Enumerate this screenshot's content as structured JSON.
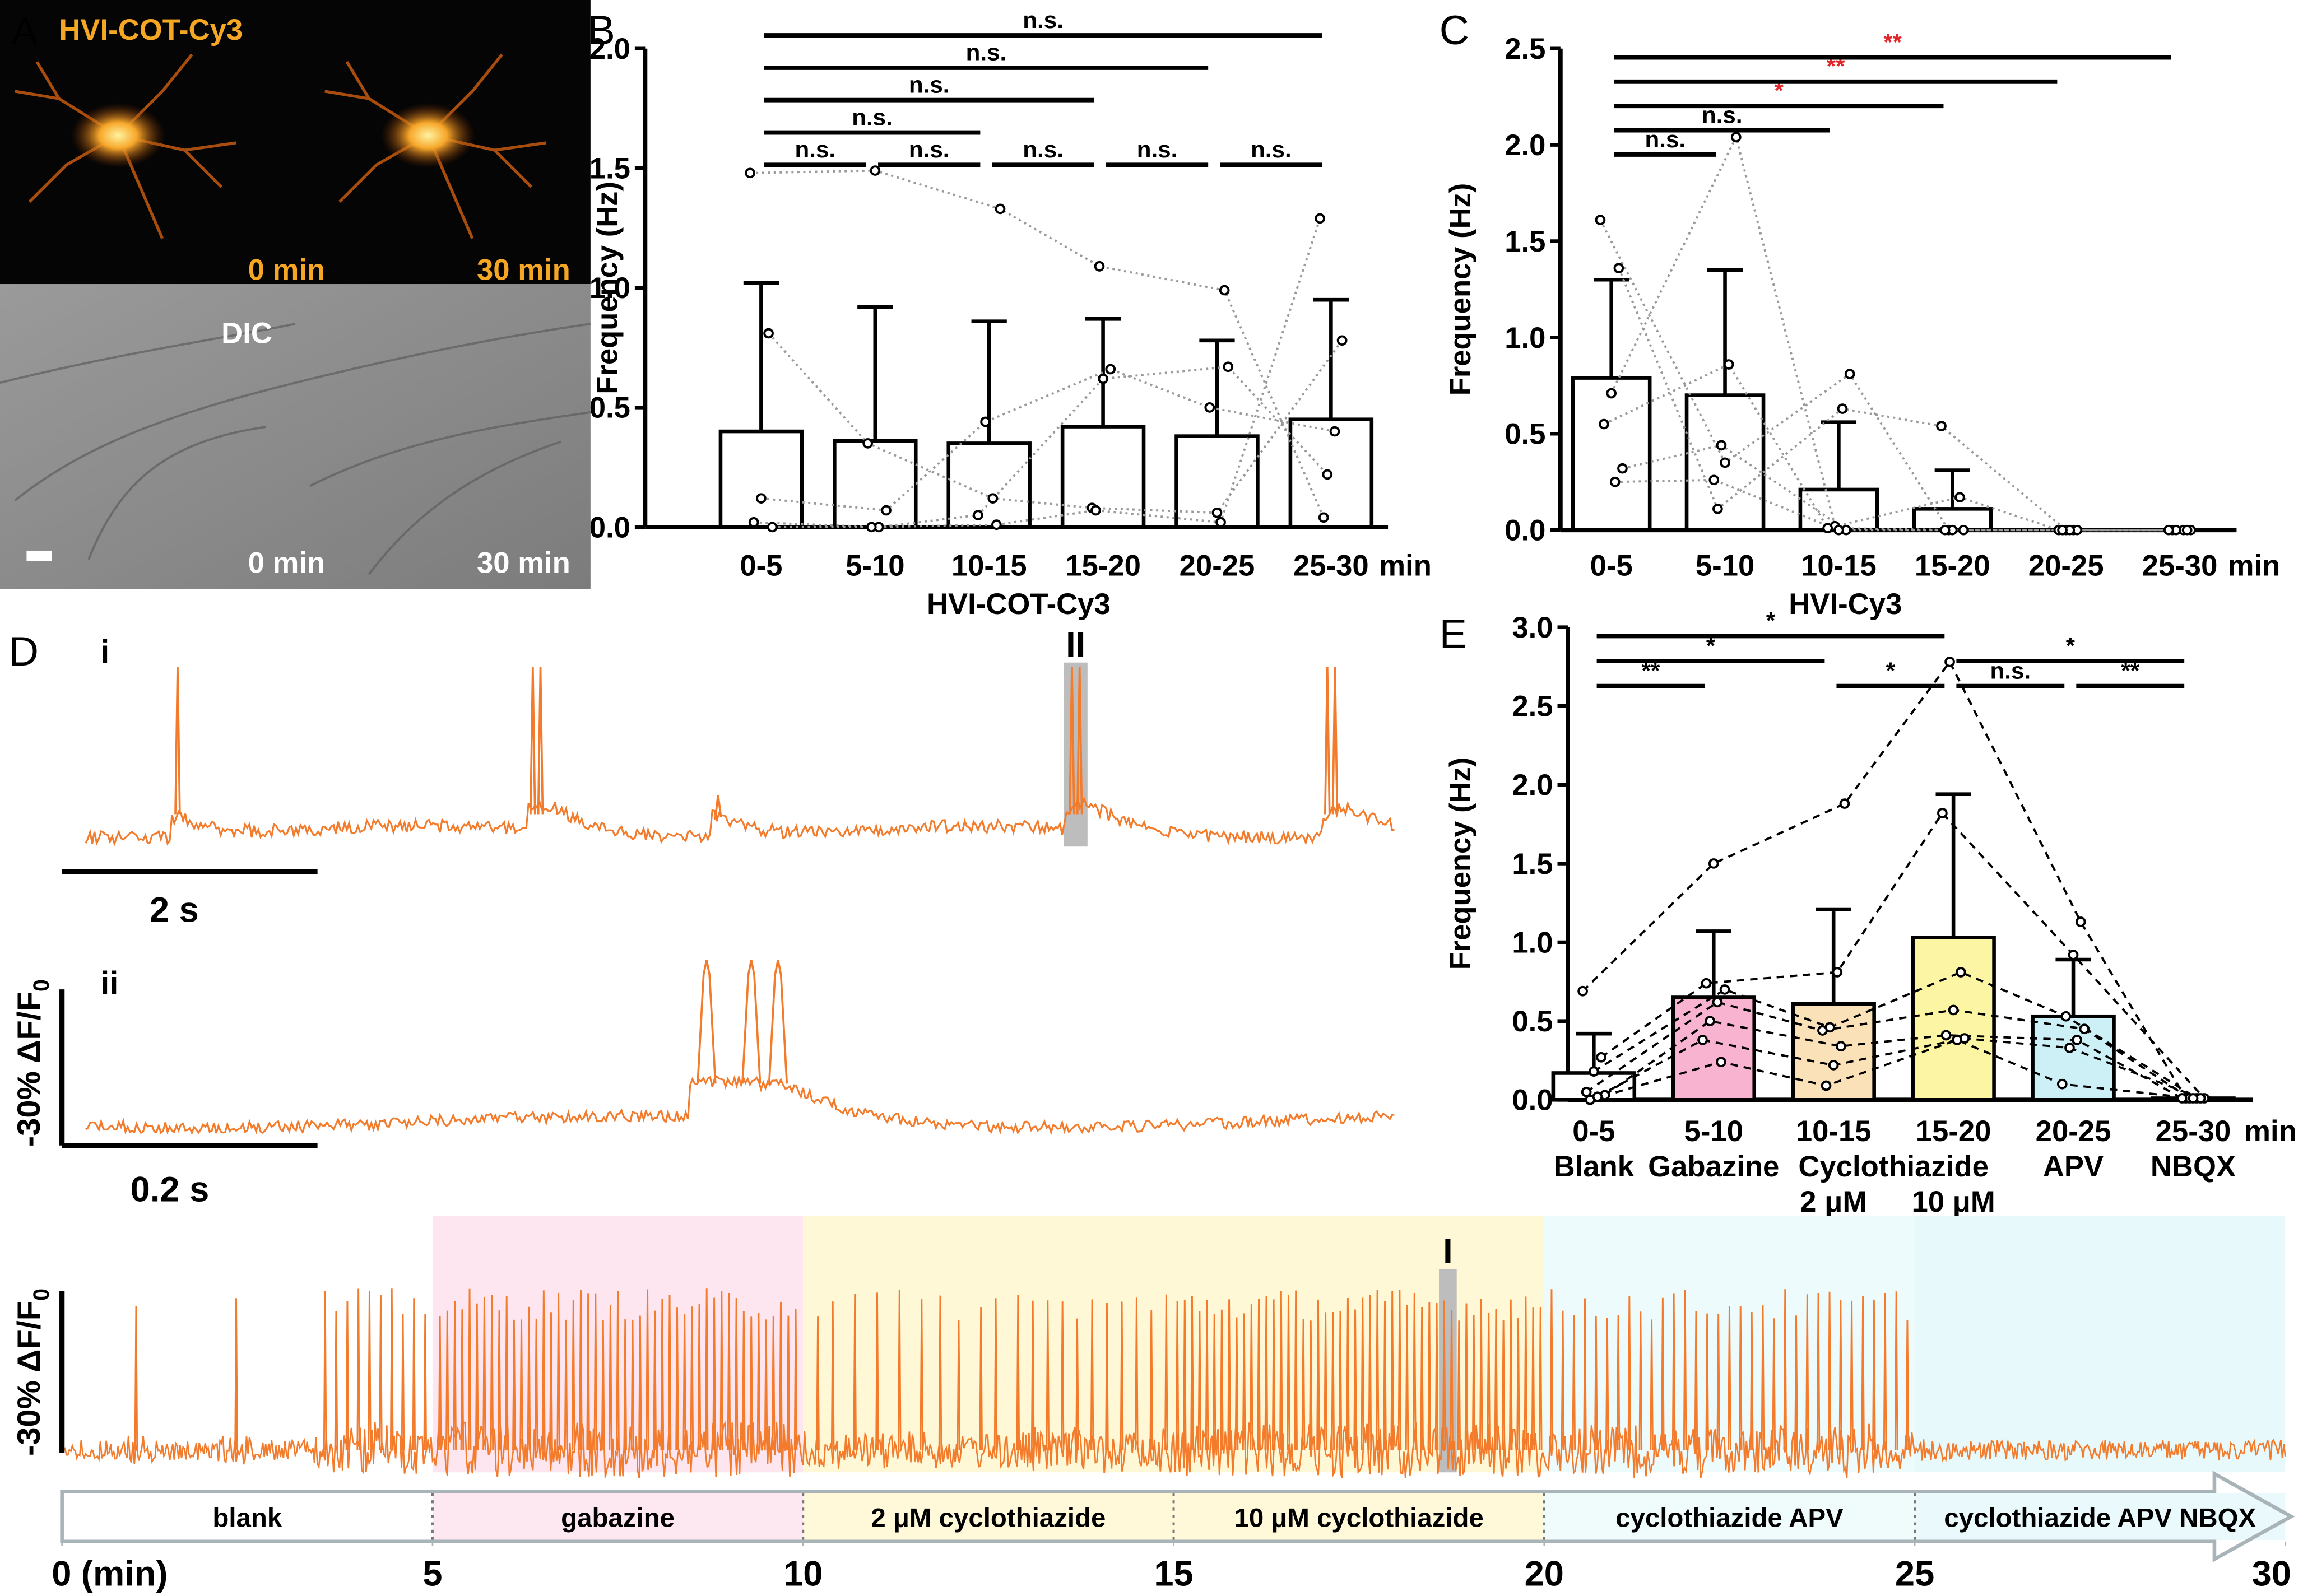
{
  "panel_a": {
    "label": "A",
    "title": "HVI-COT-Cy3",
    "fluorescence_times": [
      "0 min",
      "30 min"
    ],
    "dic_label": "DIC",
    "dic_times": [
      "0 min",
      "30 min"
    ]
  },
  "chart_data": [
    {
      "type": "bar",
      "panel": "B",
      "categories": [
        "0-5",
        "5-10",
        "10-15",
        "15-20",
        "20-25",
        "25-30"
      ],
      "x_unit": "min",
      "x_label": "HVI-COT-Cy3",
      "y_label": "Frequency (Hz)",
      "ylim": [
        0,
        2
      ],
      "yticks": [
        {
          "value": 0,
          "label": "0.0"
        },
        0.5,
        {
          "value": 1,
          "label": "1.0"
        },
        1.5,
        {
          "value": 2,
          "label": "2.0"
        }
      ],
      "values": [
        0.4,
        0.36,
        0.35,
        0.42,
        0.38,
        0.45
      ],
      "errors": [
        0.62,
        0.56,
        0.51,
        0.45,
        0.4,
        0.5
      ],
      "bar_color": "#ffffff",
      "cell_line_style": "dotted",
      "cell_line_color": "#9a9a9a",
      "series": [
        {
          "values": [
            1.48,
            1.49,
            1.33,
            1.09,
            0.99,
            0.04
          ]
        },
        {
          "values": [
            0.81,
            0.35,
            0.12,
            0.08,
            0.06,
            0.78
          ]
        },
        {
          "values": [
            0.12,
            0.07,
            0.44,
            0.66,
            0.5,
            0.4
          ]
        },
        {
          "values": [
            0.02,
            0.0,
            0.05,
            0.62,
            0.67,
            0.22
          ]
        },
        {
          "values": [
            0.0,
            0.0,
            0.01,
            0.07,
            0.02,
            1.29
          ]
        }
      ],
      "comparisons": [
        {
          "from": 0,
          "to": 1,
          "label": "n.s.",
          "color": "#000000"
        },
        {
          "from": 1,
          "to": 2,
          "label": "n.s.",
          "color": "#000000"
        },
        {
          "from": 2,
          "to": 3,
          "label": "n.s.",
          "color": "#000000"
        },
        {
          "from": 3,
          "to": 4,
          "label": "n.s.",
          "color": "#000000"
        },
        {
          "from": 4,
          "to": 5,
          "label": "n.s.",
          "color": "#000000"
        },
        {
          "from": 0,
          "to": 2,
          "label": "n.s.",
          "color": "#000000"
        },
        {
          "from": 0,
          "to": 3,
          "label": "n.s.",
          "color": "#000000"
        },
        {
          "from": 0,
          "to": 4,
          "label": "n.s.",
          "color": "#000000"
        },
        {
          "from": 0,
          "to": 5,
          "label": "n.s.",
          "color": "#000000"
        }
      ]
    },
    {
      "type": "bar",
      "panel": "C",
      "categories": [
        "0-5",
        "5-10",
        "10-15",
        "15-20",
        "20-25",
        "25-30"
      ],
      "x_unit": "min",
      "x_label": "HVI-Cy3",
      "y_label": "Frequency (Hz)",
      "ylim": [
        0,
        2.5
      ],
      "yticks": [
        {
          "value": 0,
          "label": "0.0"
        },
        0.5,
        {
          "value": 1,
          "label": "1.0"
        },
        1.5,
        {
          "value": 2,
          "label": "2.0"
        },
        2.5
      ],
      "values": [
        0.79,
        0.7,
        0.21,
        0.11,
        0.0,
        0.0
      ],
      "errors": [
        0.51,
        0.65,
        0.35,
        0.2,
        0.0,
        0.0
      ],
      "bar_color": "#ffffff",
      "cell_line_style": "dotted",
      "cell_line_color": "#9a9a9a",
      "series": [
        {
          "values": [
            1.61,
            0.35,
            0.81,
            0.0,
            0.0,
            0.0
          ]
        },
        {
          "values": [
            1.36,
            0.11,
            0.63,
            0.54,
            0.0,
            0.0
          ]
        },
        {
          "values": [
            0.71,
            2.04,
            0.02,
            0.17,
            0.0,
            0.0
          ]
        },
        {
          "values": [
            0.55,
            0.86,
            0.01,
            0.0,
            0.0,
            0.0
          ]
        },
        {
          "values": [
            0.32,
            0.44,
            0.0,
            0.0,
            0.0,
            0.0
          ]
        },
        {
          "values": [
            0.25,
            0.26,
            0.0,
            0.0,
            0.0,
            0.0
          ]
        }
      ],
      "comparisons": [
        {
          "from": 0,
          "to": 1,
          "label": "n.s.",
          "color": "#000000"
        },
        {
          "from": 0,
          "to": 2,
          "label": "n.s.",
          "color": "#000000"
        },
        {
          "from": 0,
          "to": 3,
          "label": "*",
          "color": "#e3262b"
        },
        {
          "from": 0,
          "to": 4,
          "label": "**",
          "color": "#e3262b"
        },
        {
          "from": 0,
          "to": 5,
          "label": "**",
          "color": "#e3262b"
        }
      ]
    },
    {
      "type": "bar",
      "panel": "E",
      "categories": [
        "0-5",
        "5-10",
        "10-15",
        "15-20",
        "20-25",
        "25-30"
      ],
      "x_unit": "min",
      "y_label": "Frequency (Hz)",
      "conditions": [
        {
          "label": "Blank",
          "from": 0,
          "to": 0
        },
        {
          "label": "Gabazine",
          "from": 1,
          "to": 1
        },
        {
          "label": "Cyclothiazide",
          "from": 2,
          "to": 3
        },
        {
          "label": "APV",
          "from": 4,
          "to": 4
        },
        {
          "label": "NBQX",
          "from": 5,
          "to": 5
        }
      ],
      "concentrations": [
        null,
        null,
        "2 μM",
        "10 μM",
        null,
        null
      ],
      "ylim": [
        0,
        3
      ],
      "yticks": [
        {
          "value": 0,
          "label": "0.0"
        },
        0.5,
        {
          "value": 1,
          "label": "1.0"
        },
        1.5,
        {
          "value": 2,
          "label": "2.0"
        },
        2.5,
        {
          "value": 3,
          "label": "3.0"
        }
      ],
      "values": [
        0.17,
        0.65,
        0.61,
        1.03,
        0.53,
        0.01
      ],
      "errors": [
        0.25,
        0.42,
        0.6,
        0.91,
        0.36,
        0.0
      ],
      "bar_colors": [
        "#ffffff",
        "#f7b3cf",
        "#fbe1b7",
        "#fcf5a3",
        "#cdf0f6",
        "#ffffff"
      ],
      "cell_line_style": "dashed",
      "cell_line_color": "#000000",
      "series": [
        {
          "values": [
            0.69,
            1.5,
            1.88,
            2.78,
            1.13,
            0.01
          ]
        },
        {
          "values": [
            0.27,
            0.74,
            0.81,
            1.82,
            0.92,
            0.01
          ]
        },
        {
          "values": [
            0.18,
            0.7,
            0.46,
            0.81,
            0.53,
            0.01
          ]
        },
        {
          "values": [
            0.05,
            0.62,
            0.44,
            0.57,
            0.45,
            0.01
          ]
        },
        {
          "values": [
            0.03,
            0.5,
            0.34,
            0.41,
            0.38,
            0.01
          ]
        },
        {
          "values": [
            0.02,
            0.38,
            0.22,
            0.39,
            0.33,
            0.01
          ]
        },
        {
          "values": [
            0.0,
            0.24,
            0.09,
            0.38,
            0.1,
            0.01
          ]
        }
      ],
      "comparisons": [
        {
          "from": 0,
          "to": 1,
          "label": "**",
          "color": "#000000"
        },
        {
          "from": 2,
          "to": 3,
          "label": "*",
          "color": "#000000"
        },
        {
          "from": 3,
          "to": 4,
          "label": "n.s.",
          "color": "#000000"
        },
        {
          "from": 4,
          "to": 5,
          "label": "**",
          "color": "#000000"
        },
        {
          "from": 0,
          "to": 2,
          "label": "*",
          "color": "#000000"
        },
        {
          "from": 3,
          "to": 5,
          "label": "*",
          "color": "#000000"
        },
        {
          "from": 0,
          "to": 3,
          "label": "*",
          "color": "#000000"
        }
      ]
    }
  ],
  "panel_d": {
    "label": "D",
    "color": "#f37b2c",
    "trace_i": {
      "label": "i",
      "xlim": [
        0,
        10.25
      ],
      "spike_times": [
        0.72,
        3.5,
        3.56,
        7.72,
        7.78,
        9.72,
        9.78
      ],
      "transient_times": [
        4.95
      ],
      "highlight": {
        "label": "II",
        "time": 7.75
      },
      "scale_bar": {
        "value": 2,
        "label": "2 s"
      }
    },
    "trace_ii": {
      "label": "ii",
      "xlim": [
        0,
        1.025
      ],
      "spike_times": [
        0.486,
        0.521,
        0.542
      ],
      "scale_bar": {
        "value": 0.2,
        "label": "0.2 s"
      },
      "amplitude_label": "-30% ΔF/F",
      "amplitude_label_sub": "0"
    }
  },
  "timeline": {
    "color": "#f37b2c",
    "xlim": [
      0,
      30
    ],
    "xticks": [
      {
        "value": 0,
        "label": "0 (min)"
      },
      5,
      10,
      15,
      20,
      25,
      30
    ],
    "stages": [
      {
        "name": "blank",
        "start": 0,
        "end": 5,
        "color": "#ffffff"
      },
      {
        "name": "gabazine",
        "start": 5,
        "end": 10,
        "color": "#fde6f0"
      },
      {
        "name": "2 μM cyclothiazide",
        "start": 10,
        "end": 15,
        "color": "#fff8d6"
      },
      {
        "name": "10 μM cyclothiazide",
        "start": 15,
        "end": 20,
        "color": "#fff8d6"
      },
      {
        "name": "cyclothiazide APV",
        "start": 20,
        "end": 25,
        "color": "#eefbfc"
      },
      {
        "name": "cyclothiazide APV NBQX",
        "start": 25,
        "end": 30,
        "color": "#e8f9fc"
      }
    ],
    "spike_times": [
      1.0,
      2.35,
      3.55,
      3.7,
      3.85,
      4.0,
      4.15,
      4.3,
      4.45,
      4.6,
      4.75,
      4.9,
      5.1,
      5.2,
      5.3,
      5.4,
      5.5,
      5.6,
      5.7,
      5.8,
      5.9,
      6.0,
      6.1,
      6.2,
      6.3,
      6.4,
      6.5,
      6.6,
      6.7,
      6.8,
      6.9,
      7.0,
      7.1,
      7.2,
      7.3,
      7.4,
      7.5,
      7.6,
      7.7,
      7.8,
      7.9,
      8.0,
      8.1,
      8.2,
      8.3,
      8.4,
      8.5,
      8.6,
      8.7,
      8.8,
      8.9,
      9.0,
      9.1,
      9.2,
      9.3,
      9.4,
      9.5,
      9.6,
      9.7,
      9.8,
      9.9,
      10.2,
      10.4,
      10.7,
      11.0,
      11.3,
      11.6,
      11.85,
      12.1,
      12.4,
      12.6,
      12.9,
      13.1,
      13.3,
      13.5,
      13.7,
      13.9,
      14.1,
      14.3,
      14.5,
      14.7,
      14.9,
      15.05,
      15.15,
      15.25,
      15.35,
      15.45,
      15.55,
      15.65,
      15.75,
      15.85,
      15.95,
      16.05,
      16.15,
      16.25,
      16.35,
      16.45,
      16.55,
      16.65,
      16.75,
      16.85,
      16.95,
      17.05,
      17.15,
      17.25,
      17.35,
      17.45,
      17.55,
      17.65,
      17.75,
      17.85,
      17.95,
      18.05,
      18.15,
      18.25,
      18.35,
      18.45,
      18.55,
      18.65,
      18.75,
      18.85,
      18.95,
      19.05,
      19.15,
      19.25,
      19.35,
      19.45,
      19.55,
      19.65,
      19.75,
      19.85,
      19.95,
      20.1,
      20.25,
      20.4,
      20.55,
      20.7,
      20.85,
      21.0,
      21.15,
      21.3,
      21.45,
      21.6,
      21.75,
      21.9,
      22.05,
      22.2,
      22.35,
      22.5,
      22.65,
      22.8,
      22.95,
      23.1,
      23.25,
      23.4,
      23.55,
      23.7,
      23.85,
      24.0,
      24.15,
      24.3,
      24.45,
      24.6,
      24.75,
      24.9
    ],
    "highlight": {
      "label": "I",
      "time": 18.7
    },
    "amplitude_label": "-30% ΔF/F",
    "amplitude_label_sub": "0"
  }
}
